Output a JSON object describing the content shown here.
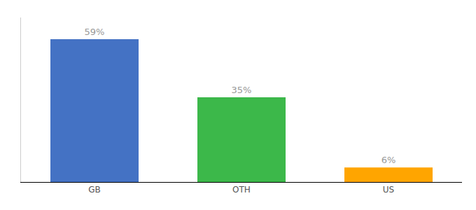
{
  "chart_data": {
    "type": "bar",
    "categories": [
      "GB",
      "OTH",
      "US"
    ],
    "values": [
      59,
      35,
      6
    ],
    "value_labels": [
      "59%",
      "35%",
      "6%"
    ],
    "colors": [
      "#4472C4",
      "#3CB84A",
      "#FFA500"
    ],
    "ylim": [
      0,
      68
    ],
    "data_labels": true,
    "tick_labels": "x",
    "grid": false
  }
}
